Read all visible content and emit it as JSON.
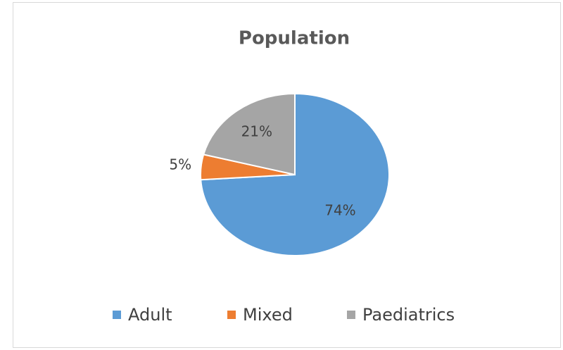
{
  "chart_data": {
    "type": "pie",
    "title": "Population",
    "categories": [
      "Adult",
      "Mixed",
      "Paediatrics"
    ],
    "values": [
      74,
      5,
      21
    ],
    "value_labels": [
      "74%",
      "5%",
      "21%"
    ],
    "colors": [
      "#5b9bd5",
      "#ed7d31",
      "#a5a5a5"
    ],
    "legend": "bottom"
  }
}
